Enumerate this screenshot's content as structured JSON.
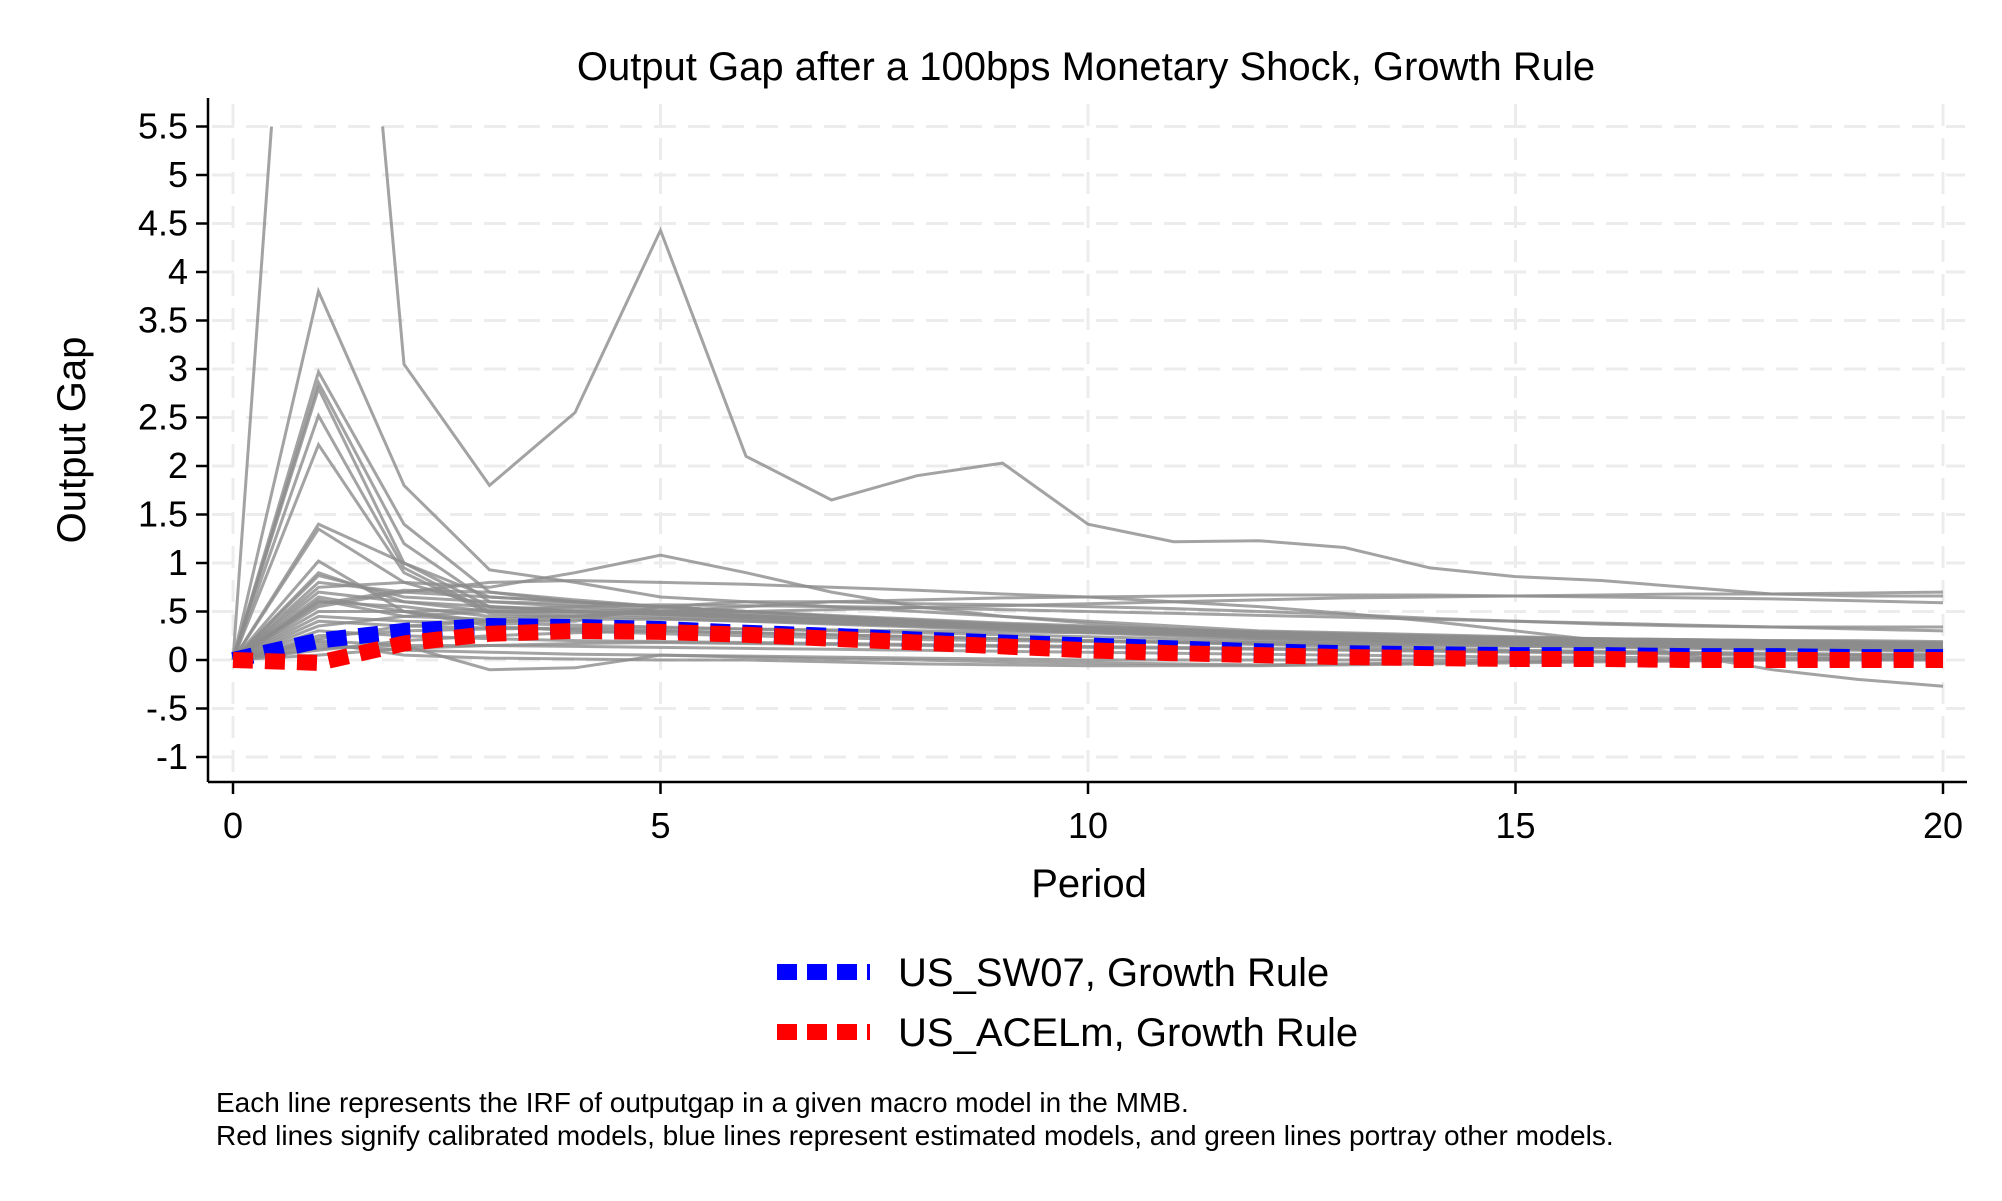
{
  "chart_data": {
    "type": "line",
    "title": "Output Gap after a 100bps Monetary Shock, Growth Rule",
    "xlabel": "Period",
    "ylabel": "Output Gap",
    "xlim": [
      0,
      20
    ],
    "ylim": [
      -1.25,
      5.75
    ],
    "x_ticks": [
      0,
      5,
      10,
      15,
      20
    ],
    "x_tick_labels": [
      "0",
      "5",
      "10",
      "15",
      "20"
    ],
    "y_ticks": [
      -1,
      -0.5,
      0,
      0.5,
      1,
      1.5,
      2,
      2.5,
      3,
      3.5,
      4,
      4.5,
      5,
      5.5
    ],
    "y_tick_labels": [
      "-1",
      "-.5",
      "0",
      ".5",
      "1",
      "1.5",
      "2",
      "2.5",
      "3",
      "3.5",
      "4",
      "4.5",
      "5",
      "5.5"
    ],
    "grid": true,
    "legend_position": "bottom",
    "x": [
      0,
      1,
      2,
      3,
      4,
      5,
      6,
      7,
      8,
      9,
      10,
      11,
      12,
      13,
      14,
      15,
      16,
      17,
      18,
      19,
      20
    ],
    "background_series_color": "#8c8c8c",
    "background_series": [
      [
        0,
        3.8,
        1.8,
        0.93,
        0.8,
        0.65,
        0.6,
        0.55,
        0.5,
        0.45,
        0.4,
        0.35,
        0.3,
        0.28,
        0.26,
        0.24,
        0.22,
        0.2,
        0.19,
        0.18,
        0.17
      ],
      [
        0,
        2.97,
        1.4,
        0.7,
        0.6,
        0.55,
        0.5,
        0.45,
        0.4,
        0.36,
        0.32,
        0.28,
        0.25,
        0.22,
        0.2,
        0.18,
        0.16,
        0.15,
        0.14,
        0.13,
        0.12
      ],
      [
        0,
        2.86,
        1.2,
        0.6,
        0.58,
        0.52,
        0.47,
        0.42,
        0.38,
        0.34,
        0.3,
        0.27,
        0.24,
        0.21,
        0.19,
        0.17,
        0.15,
        0.14,
        0.13,
        0.12,
        0.11
      ],
      [
        0,
        2.8,
        1.0,
        0.55,
        0.5,
        0.47,
        0.43,
        0.4,
        0.36,
        0.33,
        0.3,
        0.27,
        0.24,
        0.22,
        0.2,
        0.18,
        0.17,
        0.16,
        0.15,
        0.14,
        0.13
      ],
      [
        0,
        2.52,
        0.95,
        0.5,
        0.48,
        0.45,
        0.42,
        0.38,
        0.35,
        0.32,
        0.29,
        0.26,
        0.23,
        0.21,
        0.19,
        0.17,
        0.16,
        0.15,
        0.14,
        0.13,
        0.12
      ],
      [
        0,
        2.22,
        0.9,
        0.48,
        0.45,
        0.43,
        0.4,
        0.37,
        0.34,
        0.31,
        0.28,
        0.25,
        0.22,
        0.2,
        0.18,
        0.16,
        0.15,
        0.14,
        0.13,
        0.12,
        0.11
      ],
      [
        0,
        1.4,
        1.0,
        0.65,
        0.6,
        0.55,
        0.5,
        0.45,
        0.4,
        0.35,
        0.31,
        0.28,
        0.25,
        0.22,
        0.2,
        0.18,
        0.17,
        0.16,
        0.15,
        0.14,
        0.13
      ],
      [
        0,
        1.35,
        0.8,
        0.55,
        0.52,
        0.5,
        0.46,
        0.42,
        0.38,
        0.35,
        0.32,
        0.29,
        0.26,
        0.24,
        0.22,
        0.2,
        0.19,
        0.18,
        0.17,
        0.16,
        0.15
      ],
      [
        0,
        1.02,
        0.5,
        0.35,
        0.3,
        0.27,
        0.25,
        0.23,
        0.21,
        0.2,
        0.19,
        0.18,
        0.17,
        0.16,
        0.15,
        0.14,
        0.13,
        0.12,
        0.11,
        0.1,
        0.09
      ],
      [
        0,
        0.87,
        0.65,
        0.6,
        0.55,
        0.5,
        0.46,
        0.42,
        0.39,
        0.36,
        0.33,
        0.3,
        0.28,
        0.26,
        0.24,
        0.22,
        0.21,
        0.2,
        0.19,
        0.18,
        0.17
      ],
      [
        0,
        0.8,
        0.7,
        0.65,
        0.6,
        0.55,
        0.5,
        0.46,
        0.42,
        0.38,
        0.35,
        0.32,
        0.29,
        0.27,
        0.25,
        0.23,
        0.22,
        0.21,
        0.2,
        0.19,
        0.18
      ],
      [
        0,
        0.75,
        0.8,
        0.75,
        0.9,
        1.08,
        0.9,
        0.7,
        0.55,
        0.45,
        0.38,
        0.32,
        0.28,
        0.25,
        0.22,
        0.2,
        0.18,
        0.16,
        0.15,
        0.14,
        0.13
      ],
      [
        0,
        0.7,
        0.6,
        0.55,
        0.5,
        0.47,
        0.44,
        0.41,
        0.38,
        0.35,
        0.32,
        0.29,
        0.27,
        0.25,
        0.23,
        0.21,
        0.2,
        0.19,
        0.18,
        0.17,
        0.16
      ],
      [
        0,
        0.65,
        0.5,
        0.4,
        0.4,
        0.55,
        0.6,
        0.6,
        0.58,
        0.57,
        0.55,
        0.53,
        0.5,
        0.47,
        0.43,
        0.4,
        0.37,
        0.35,
        0.34,
        0.34,
        0.34
      ],
      [
        0,
        0.62,
        0.45,
        0.42,
        0.45,
        0.5,
        0.5,
        0.52,
        0.54,
        0.56,
        0.58,
        0.6,
        0.62,
        0.64,
        0.65,
        0.66,
        0.67,
        0.68,
        0.68,
        0.69,
        0.7
      ],
      [
        0,
        0.6,
        0.55,
        0.45,
        0.45,
        0.5,
        0.55,
        0.6,
        0.62,
        0.64,
        0.65,
        0.66,
        0.67,
        0.67,
        0.67,
        0.66,
        0.65,
        0.64,
        0.63,
        0.61,
        0.59
      ],
      [
        0,
        0.55,
        0.7,
        0.8,
        0.82,
        0.8,
        0.78,
        0.75,
        0.72,
        0.68,
        0.65,
        0.6,
        0.55,
        0.48,
        0.4,
        0.3,
        0.2,
        0.05,
        -0.1,
        -0.2,
        -0.27
      ],
      [
        0,
        0.5,
        0.5,
        0.52,
        0.55,
        0.57,
        0.56,
        0.55,
        0.54,
        0.52,
        0.5,
        0.48,
        0.46,
        0.44,
        0.42,
        0.4,
        0.38,
        0.36,
        0.34,
        0.32,
        0.3
      ],
      [
        0,
        0.45,
        0.4,
        0.38,
        0.36,
        0.34,
        0.32,
        0.3,
        0.28,
        0.26,
        0.24,
        0.22,
        0.2,
        0.19,
        0.18,
        0.17,
        0.16,
        0.15,
        0.14,
        0.13,
        0.12
      ],
      [
        0,
        0.4,
        0.35,
        0.33,
        0.32,
        0.3,
        0.28,
        0.26,
        0.24,
        0.22,
        0.2,
        0.19,
        0.18,
        0.17,
        0.16,
        0.15,
        0.14,
        0.13,
        0.12,
        0.11,
        0.1
      ],
      [
        0,
        0.3,
        0.25,
        0.22,
        0.2,
        0.19,
        0.18,
        0.17,
        0.16,
        0.15,
        0.14,
        0.13,
        0.12,
        0.11,
        0.1,
        0.09,
        0.08,
        0.07,
        0.06,
        0.05,
        0.05
      ],
      [
        0,
        0.25,
        0.3,
        0.32,
        0.33,
        0.33,
        0.32,
        0.31,
        0.3,
        0.29,
        0.28,
        0.27,
        0.26,
        0.25,
        0.24,
        0.23,
        0.22,
        0.21,
        0.2,
        0.2,
        0.19
      ],
      [
        0,
        0.2,
        0.15,
        -0.1,
        -0.08,
        0.05,
        0.03,
        0.01,
        0,
        -0.02,
        -0.03,
        -0.04,
        -0.05,
        -0.04,
        -0.03,
        -0.02,
        -0.01,
        0,
        0.01,
        0.02,
        0.03
      ],
      [
        0,
        0.15,
        0.1,
        0.08,
        0.06,
        0.05,
        0.04,
        0.03,
        0.02,
        0.01,
        0,
        0,
        0,
        0,
        0,
        0,
        0,
        0,
        0,
        0,
        0
      ],
      [
        0,
        0.1,
        0.2,
        0.25,
        0.28,
        0.3,
        0.28,
        0.26,
        0.24,
        0.22,
        0.2,
        0.18,
        0.16,
        0.14,
        0.12,
        0.1,
        0.09,
        0.08,
        0.07,
        0.06,
        0.06
      ],
      [
        0,
        0.05,
        0.12,
        0.15,
        0.17,
        0.18,
        0.17,
        0.16,
        0.15,
        0.14,
        0.13,
        0.12,
        0.11,
        0.1,
        0.09,
        0.08,
        0.07,
        0.06,
        0.05,
        0.05,
        0.04
      ],
      [
        0,
        0.9,
        0.6,
        0.5,
        0.5,
        0.48,
        0.45,
        0.42,
        0.39,
        0.36,
        0.33,
        0.3,
        0.27,
        0.25,
        0.23,
        0.21,
        0.2,
        0.19,
        0.18,
        0.17,
        0.16
      ],
      [
        0,
        0.58,
        0.72,
        0.7,
        0.62,
        0.55,
        0.5,
        0.45,
        0.41,
        0.37,
        0.34,
        0.31,
        0.28,
        0.26,
        0.24,
        0.22,
        0.2,
        0.19,
        0.18,
        0.17,
        0.16
      ],
      [
        0,
        0.35,
        0.45,
        0.5,
        0.5,
        0.48,
        0.45,
        0.42,
        0.39,
        0.36,
        0.33,
        0.3,
        0.28,
        0.26,
        0.24,
        0.22,
        0.21,
        0.2,
        0.19,
        0.18,
        0.17
      ],
      [
        0,
        0.18,
        0.05,
        0.02,
        0.01,
        0,
        0,
        -0.02,
        -0.04,
        -0.05,
        -0.06,
        -0.06,
        -0.06,
        -0.05,
        -0.04,
        -0.03,
        -0.02,
        -0.01,
        0,
        0,
        0
      ],
      [
        0,
        0.12,
        0.15,
        0.15,
        0.14,
        0.13,
        0.12,
        0.11,
        0.1,
        0.09,
        0.08,
        0.07,
        0.06,
        0.05,
        0.04,
        0.03,
        0.03,
        0.02,
        0.02,
        0.02,
        0.01
      ],
      [
        0,
        0.22,
        0.35,
        0.4,
        0.42,
        0.42,
        0.4,
        0.38,
        0.36,
        0.34,
        0.32,
        0.3,
        0.28,
        0.26,
        0.24,
        0.22,
        0.21,
        0.2,
        0.19,
        0.18,
        0.17
      ]
    ],
    "spike_series": [
      {
        "x": [
          0,
          0.45
        ],
        "values": [
          0,
          5.5
        ]
      },
      {
        "x": [
          1.75,
          2,
          3,
          4,
          5,
          6,
          7,
          8,
          9,
          10,
          11,
          12,
          13,
          14,
          15,
          16,
          17,
          18,
          19,
          20
        ],
        "values": [
          5.5,
          3.05,
          1.8,
          2.55,
          4.43,
          2.1,
          1.65,
          1.9,
          2.03,
          1.4,
          1.22,
          1.23,
          1.16,
          0.95,
          0.86,
          0.82,
          0.75,
          0.68,
          0.66,
          0.66
        ]
      }
    ],
    "series": [
      {
        "name": "US_SW07, Growth Rule",
        "color": "#0000ff",
        "values": [
          0,
          0.2,
          0.3,
          0.35,
          0.34,
          0.32,
          0.28,
          0.25,
          0.21,
          0.18,
          0.15,
          0.12,
          0.09,
          0.07,
          0.06,
          0.05,
          0.05,
          0.04,
          0.04,
          0.03,
          0.03
        ]
      },
      {
        "name": "US_ACELm, Growth Rule",
        "color": "#ff0000",
        "values": [
          0,
          -0.03,
          0.17,
          0.27,
          0.3,
          0.29,
          0.26,
          0.22,
          0.18,
          0.14,
          0.1,
          0.07,
          0.05,
          0.03,
          0.02,
          0.01,
          0.01,
          0,
          0,
          0,
          0
        ]
      }
    ]
  },
  "notes": [
    "Each line represents the IRF of outputgap in a given macro model in the MMB.",
    "Red lines signify calibrated models, blue lines represent estimated models, and green lines portray other models."
  ]
}
